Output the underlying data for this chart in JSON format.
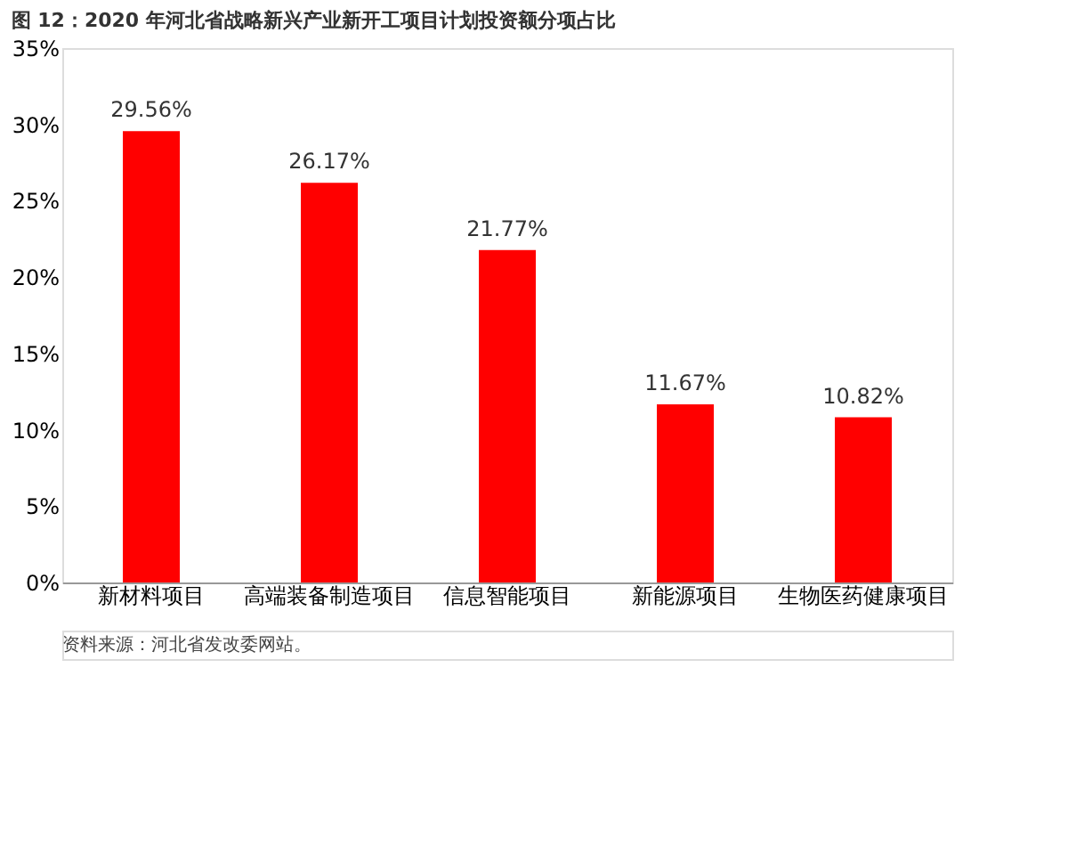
{
  "chart_data": {
    "type": "bar",
    "title": "图 12：2020 年河北省战略新兴产业新开工项目计划投资额分项占比",
    "categories": [
      "新材料项目",
      "高端装备制造项目",
      "信息智能项目",
      "新能源项目",
      "生物医药健康项目"
    ],
    "values": [
      29.56,
      26.17,
      21.77,
      11.67,
      10.82
    ],
    "value_labels": [
      "29.56%",
      "26.17%",
      "21.77%",
      "11.67%",
      "10.82%"
    ],
    "color": "#ff0000",
    "ylim": [
      0,
      35
    ],
    "yticks": [
      {
        "value": 0,
        "label": "0%"
      },
      {
        "value": 5,
        "label": "5%"
      },
      {
        "value": 10,
        "label": "10%"
      },
      {
        "value": 15,
        "label": "15%"
      },
      {
        "value": 20,
        "label": "20%"
      },
      {
        "value": 25,
        "label": "25%"
      },
      {
        "value": 30,
        "label": "30%"
      },
      {
        "value": 35,
        "label": "35%"
      }
    ],
    "grid": false,
    "annotations": [
      "资料来源：河北省发改委网站。"
    ]
  }
}
